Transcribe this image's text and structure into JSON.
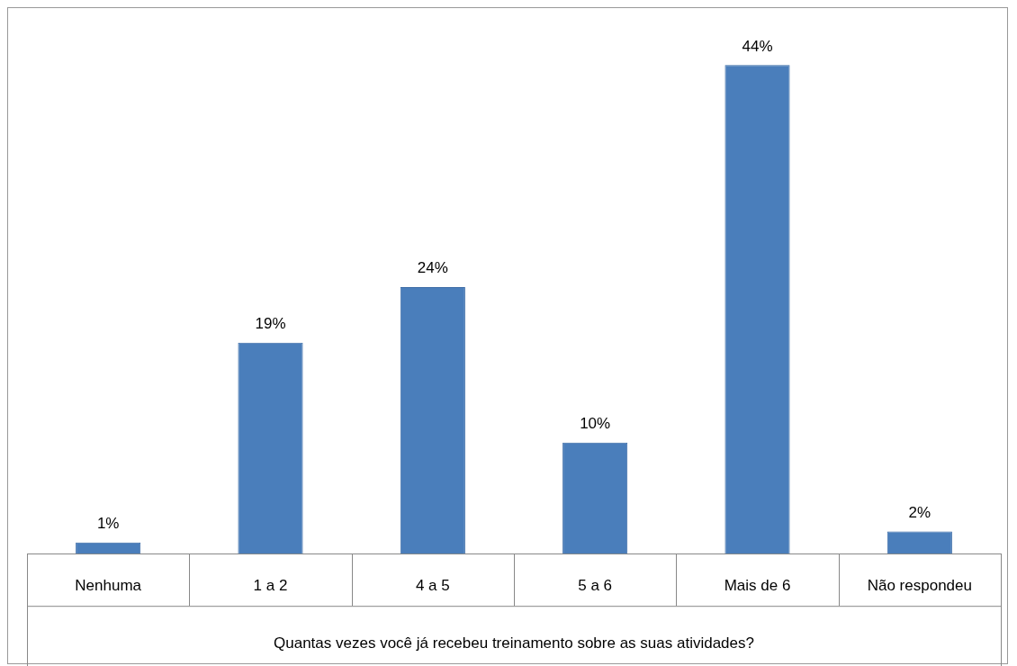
{
  "chart_data": {
    "type": "bar",
    "xlabel": "Quantas vezes você já recebeu treinamento sobre as suas atividades?",
    "categories": [
      "Nenhuma",
      "1 a 2",
      "4 a 5",
      "5 a 6",
      "Mais de 6",
      "Não respondeu"
    ],
    "values": [
      1,
      19,
      24,
      10,
      44,
      2
    ],
    "value_labels": [
      "1%",
      "19%",
      "24%",
      "10%",
      "44%",
      "2%"
    ],
    "color": "#4a7ebb",
    "legend": false
  }
}
